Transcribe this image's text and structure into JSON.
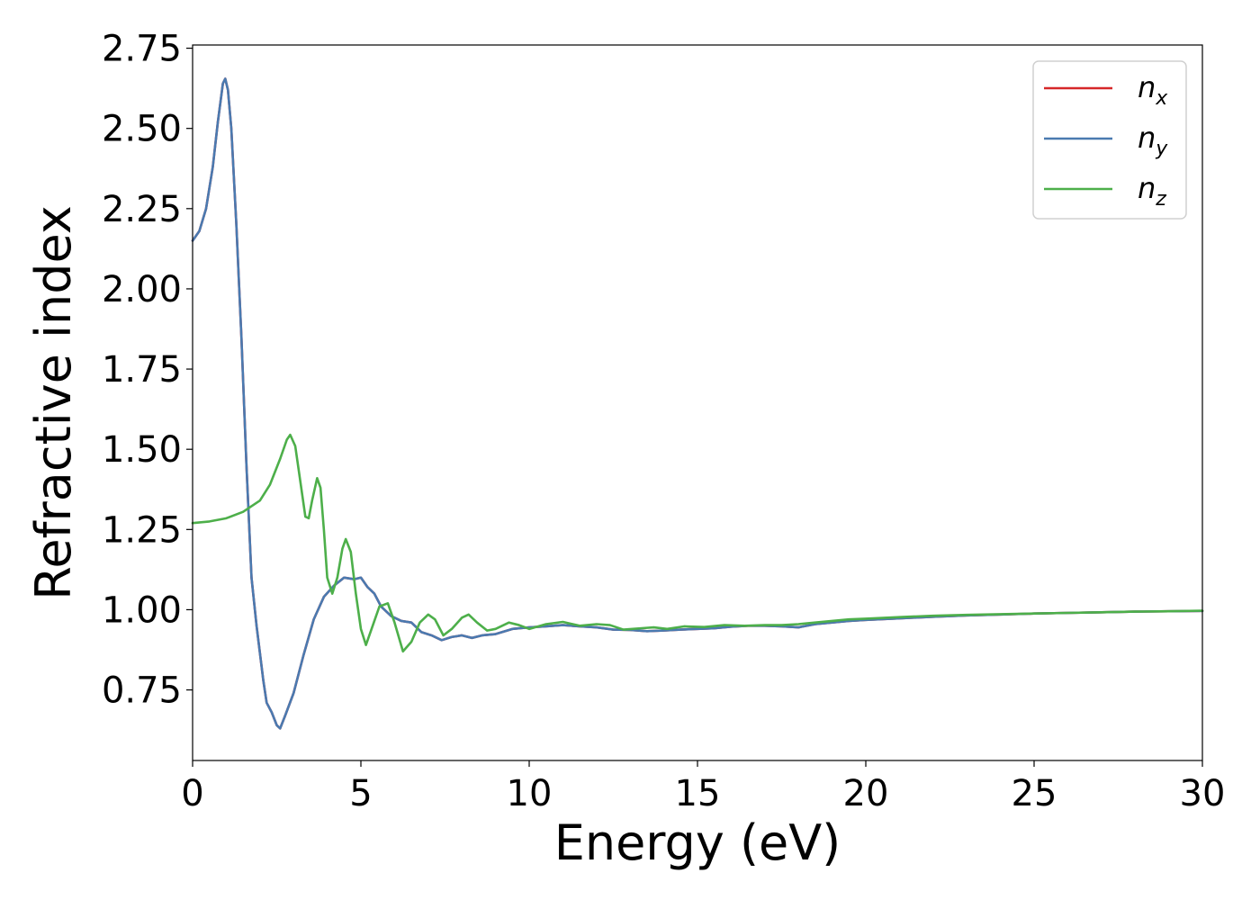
{
  "chart_data": {
    "type": "line",
    "title": "",
    "xlabel": "Energy (eV)",
    "ylabel": "Refractive index",
    "xlim": [
      0,
      30
    ],
    "ylim": [
      0.53,
      2.76
    ],
    "xticks": [
      0,
      5,
      10,
      15,
      20,
      25,
      30
    ],
    "yticks": [
      0.75,
      1.0,
      1.25,
      1.5,
      1.75,
      2.0,
      2.25,
      2.5,
      2.75
    ],
    "xtick_labels": [
      "0",
      "5",
      "10",
      "15",
      "20",
      "25",
      "30"
    ],
    "ytick_labels": [
      "0.75",
      "1.00",
      "1.25",
      "1.50",
      "1.75",
      "2.00",
      "2.25",
      "2.50",
      "2.75"
    ],
    "grid": false,
    "legend_position": "top-right",
    "series": [
      {
        "name": "n_x",
        "legend_base": "n",
        "legend_sub": "x",
        "color": "#d62728",
        "points": [
          [
            0,
            2.15
          ],
          [
            0.2,
            2.18
          ],
          [
            0.4,
            2.25
          ],
          [
            0.6,
            2.38
          ],
          [
            0.75,
            2.52
          ],
          [
            0.9,
            2.64
          ],
          [
            0.97,
            2.655
          ],
          [
            1.05,
            2.62
          ],
          [
            1.15,
            2.5
          ],
          [
            1.3,
            2.2
          ],
          [
            1.45,
            1.85
          ],
          [
            1.6,
            1.45
          ],
          [
            1.75,
            1.1
          ],
          [
            1.9,
            0.95
          ],
          [
            2.1,
            0.78
          ],
          [
            2.2,
            0.71
          ],
          [
            2.35,
            0.68
          ],
          [
            2.5,
            0.64
          ],
          [
            2.6,
            0.63
          ],
          [
            2.75,
            0.67
          ],
          [
            3.0,
            0.74
          ],
          [
            3.3,
            0.86
          ],
          [
            3.6,
            0.97
          ],
          [
            3.9,
            1.04
          ],
          [
            4.2,
            1.075
          ],
          [
            4.5,
            1.1
          ],
          [
            4.8,
            1.095
          ],
          [
            5.0,
            1.1
          ],
          [
            5.2,
            1.07
          ],
          [
            5.4,
            1.05
          ],
          [
            5.6,
            1.01
          ],
          [
            5.9,
            0.98
          ],
          [
            6.2,
            0.965
          ],
          [
            6.5,
            0.96
          ],
          [
            6.8,
            0.93
          ],
          [
            7.1,
            0.92
          ],
          [
            7.4,
            0.905
          ],
          [
            7.7,
            0.915
          ],
          [
            8.0,
            0.92
          ],
          [
            8.3,
            0.912
          ],
          [
            8.6,
            0.92
          ],
          [
            9.0,
            0.924
          ],
          [
            9.5,
            0.94
          ],
          [
            10,
            0.945
          ],
          [
            10.5,
            0.948
          ],
          [
            11,
            0.952
          ],
          [
            11.5,
            0.948
          ],
          [
            12,
            0.945
          ],
          [
            12.5,
            0.938
          ],
          [
            13,
            0.937
          ],
          [
            13.5,
            0.933
          ],
          [
            14,
            0.935
          ],
          [
            14.5,
            0.938
          ],
          [
            15,
            0.94
          ],
          [
            15.5,
            0.942
          ],
          [
            16,
            0.947
          ],
          [
            16.5,
            0.95
          ],
          [
            17,
            0.95
          ],
          [
            17.5,
            0.948
          ],
          [
            18,
            0.945
          ],
          [
            18.5,
            0.955
          ],
          [
            19,
            0.96
          ],
          [
            19.5,
            0.965
          ],
          [
            20,
            0.968
          ],
          [
            21,
            0.973
          ],
          [
            22,
            0.978
          ],
          [
            23,
            0.982
          ],
          [
            24,
            0.985
          ],
          [
            25,
            0.988
          ],
          [
            26,
            0.99
          ],
          [
            27,
            0.992
          ],
          [
            28,
            0.994
          ],
          [
            29,
            0.995
          ],
          [
            30,
            0.996
          ]
        ]
      },
      {
        "name": "n_y",
        "legend_base": "n",
        "legend_sub": "y",
        "color": "#4a7ab0",
        "points": [
          [
            0,
            2.15
          ],
          [
            0.2,
            2.18
          ],
          [
            0.4,
            2.25
          ],
          [
            0.6,
            2.38
          ],
          [
            0.75,
            2.52
          ],
          [
            0.9,
            2.64
          ],
          [
            0.97,
            2.655
          ],
          [
            1.05,
            2.62
          ],
          [
            1.15,
            2.5
          ],
          [
            1.3,
            2.2
          ],
          [
            1.45,
            1.85
          ],
          [
            1.6,
            1.45
          ],
          [
            1.75,
            1.1
          ],
          [
            1.9,
            0.95
          ],
          [
            2.1,
            0.78
          ],
          [
            2.2,
            0.71
          ],
          [
            2.35,
            0.68
          ],
          [
            2.5,
            0.64
          ],
          [
            2.6,
            0.63
          ],
          [
            2.75,
            0.67
          ],
          [
            3.0,
            0.74
          ],
          [
            3.3,
            0.86
          ],
          [
            3.6,
            0.97
          ],
          [
            3.9,
            1.04
          ],
          [
            4.2,
            1.075
          ],
          [
            4.5,
            1.1
          ],
          [
            4.8,
            1.095
          ],
          [
            5.0,
            1.1
          ],
          [
            5.2,
            1.07
          ],
          [
            5.4,
            1.05
          ],
          [
            5.6,
            1.01
          ],
          [
            5.9,
            0.98
          ],
          [
            6.2,
            0.965
          ],
          [
            6.5,
            0.96
          ],
          [
            6.8,
            0.93
          ],
          [
            7.1,
            0.92
          ],
          [
            7.4,
            0.905
          ],
          [
            7.7,
            0.915
          ],
          [
            8.0,
            0.92
          ],
          [
            8.3,
            0.912
          ],
          [
            8.6,
            0.92
          ],
          [
            9.0,
            0.924
          ],
          [
            9.5,
            0.94
          ],
          [
            10,
            0.945
          ],
          [
            10.5,
            0.948
          ],
          [
            11,
            0.952
          ],
          [
            11.5,
            0.948
          ],
          [
            12,
            0.945
          ],
          [
            12.5,
            0.938
          ],
          [
            13,
            0.937
          ],
          [
            13.5,
            0.933
          ],
          [
            14,
            0.935
          ],
          [
            14.5,
            0.938
          ],
          [
            15,
            0.94
          ],
          [
            15.5,
            0.942
          ],
          [
            16,
            0.947
          ],
          [
            16.5,
            0.95
          ],
          [
            17,
            0.95
          ],
          [
            17.5,
            0.948
          ],
          [
            18,
            0.945
          ],
          [
            18.5,
            0.955
          ],
          [
            19,
            0.96
          ],
          [
            19.5,
            0.965
          ],
          [
            20,
            0.968
          ],
          [
            21,
            0.973
          ],
          [
            22,
            0.978
          ],
          [
            23,
            0.982
          ],
          [
            24,
            0.985
          ],
          [
            25,
            0.988
          ],
          [
            26,
            0.99
          ],
          [
            27,
            0.992
          ],
          [
            28,
            0.994
          ],
          [
            29,
            0.995
          ],
          [
            30,
            0.996
          ]
        ]
      },
      {
        "name": "n_z",
        "legend_base": "n",
        "legend_sub": "z",
        "color": "#4daf4a",
        "points": [
          [
            0,
            1.27
          ],
          [
            0.5,
            1.275
          ],
          [
            1.0,
            1.285
          ],
          [
            1.5,
            1.305
          ],
          [
            2.0,
            1.34
          ],
          [
            2.3,
            1.39
          ],
          [
            2.6,
            1.47
          ],
          [
            2.8,
            1.53
          ],
          [
            2.9,
            1.545
          ],
          [
            3.05,
            1.51
          ],
          [
            3.2,
            1.4
          ],
          [
            3.35,
            1.29
          ],
          [
            3.45,
            1.285
          ],
          [
            3.55,
            1.34
          ],
          [
            3.7,
            1.41
          ],
          [
            3.8,
            1.38
          ],
          [
            3.9,
            1.25
          ],
          [
            4.0,
            1.1
          ],
          [
            4.15,
            1.05
          ],
          [
            4.3,
            1.1
          ],
          [
            4.45,
            1.19
          ],
          [
            4.55,
            1.22
          ],
          [
            4.7,
            1.18
          ],
          [
            4.85,
            1.05
          ],
          [
            5.0,
            0.94
          ],
          [
            5.15,
            0.89
          ],
          [
            5.35,
            0.95
          ],
          [
            5.55,
            1.01
          ],
          [
            5.8,
            1.02
          ],
          [
            6.0,
            0.96
          ],
          [
            6.25,
            0.87
          ],
          [
            6.5,
            0.9
          ],
          [
            6.75,
            0.96
          ],
          [
            7.0,
            0.985
          ],
          [
            7.2,
            0.97
          ],
          [
            7.45,
            0.92
          ],
          [
            7.7,
            0.94
          ],
          [
            8.0,
            0.975
          ],
          [
            8.2,
            0.985
          ],
          [
            8.45,
            0.96
          ],
          [
            8.75,
            0.935
          ],
          [
            9.0,
            0.94
          ],
          [
            9.4,
            0.96
          ],
          [
            9.7,
            0.952
          ],
          [
            10,
            0.94
          ],
          [
            10.5,
            0.955
          ],
          [
            11,
            0.962
          ],
          [
            11.5,
            0.95
          ],
          [
            12,
            0.955
          ],
          [
            12.4,
            0.952
          ],
          [
            12.8,
            0.938
          ],
          [
            13.3,
            0.942
          ],
          [
            13.7,
            0.945
          ],
          [
            14.1,
            0.94
          ],
          [
            14.6,
            0.948
          ],
          [
            15.2,
            0.946
          ],
          [
            15.8,
            0.952
          ],
          [
            16.4,
            0.95
          ],
          [
            17,
            0.952
          ],
          [
            17.5,
            0.952
          ],
          [
            18,
            0.955
          ],
          [
            18.5,
            0.96
          ],
          [
            19,
            0.965
          ],
          [
            19.5,
            0.97
          ],
          [
            20,
            0.972
          ],
          [
            21,
            0.977
          ],
          [
            22,
            0.981
          ],
          [
            23,
            0.984
          ],
          [
            24,
            0.986
          ],
          [
            25,
            0.988
          ],
          [
            26,
            0.99
          ],
          [
            27,
            0.992
          ],
          [
            28,
            0.994
          ],
          [
            29,
            0.995
          ],
          [
            30,
            0.997
          ]
        ]
      }
    ]
  }
}
